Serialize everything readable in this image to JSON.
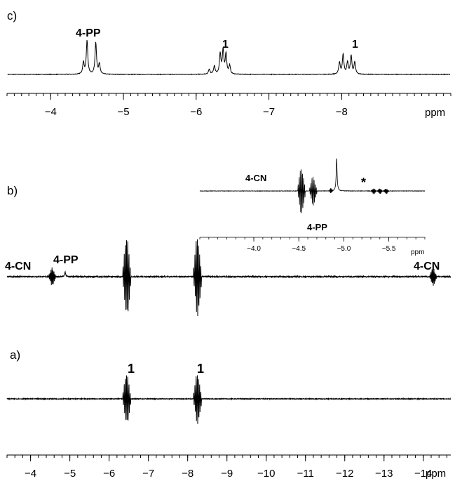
{
  "chart_data": [
    {
      "type": "line",
      "panel": "c)",
      "x_unit": "ppm",
      "xlim": [
        -3.4,
        -9.5
      ],
      "x_ticks": [
        -4,
        -5,
        -6,
        -7,
        -8
      ],
      "x_tick_labels": [
        "−4",
        "−5",
        "−6",
        "−7",
        "−8"
      ],
      "peaks": [
        {
          "label": "4-PP",
          "shifts": [
            -4.45,
            -4.5,
            -4.62,
            -4.67
          ],
          "heights": [
            0.35,
            1.0,
            0.95,
            0.3
          ]
        },
        {
          "label": "1",
          "shifts": [
            -6.18,
            -6.25,
            -6.33,
            -6.37,
            -6.41,
            -6.46
          ],
          "heights": [
            0.15,
            0.25,
            0.6,
            0.7,
            0.6,
            0.25
          ]
        },
        {
          "label": "1",
          "shifts": [
            -7.97,
            -8.02,
            -8.08,
            -8.13,
            -8.18
          ],
          "heights": [
            0.35,
            0.6,
            0.35,
            0.55,
            0.35
          ]
        }
      ]
    },
    {
      "type": "line",
      "panel": "b)",
      "x_unit": "ppm",
      "xlim": [
        -3.4,
        -14.7
      ],
      "peaks": [
        {
          "label": "4-CN",
          "center": -4.55,
          "sign": "antiphase",
          "amplitude": 0.35
        },
        {
          "label": "4-PP",
          "center": -4.88,
          "sign": "positive",
          "amplitude": 0.12
        },
        {
          "label": "",
          "center": -6.45,
          "sign": "antiphase",
          "amplitude": 1.55
        },
        {
          "label": "",
          "center": -8.25,
          "sign": "antiphase",
          "amplitude": 1.55
        },
        {
          "label": "4-CN",
          "center": -14.25,
          "sign": "antiphase",
          "amplitude": 0.35
        }
      ],
      "inset": {
        "x_unit": "ppm",
        "xlim": [
          -3.4,
          -5.9
        ],
        "x_ticks": [
          -4.0,
          -4.5,
          -5.0,
          -5.5
        ],
        "x_tick_labels": [
          "−4.0",
          "−4.5",
          "−5.0",
          "−5.5"
        ],
        "annotations": [
          "4-CN",
          "4-PP",
          "*"
        ]
      }
    },
    {
      "type": "line",
      "panel": "a)",
      "x_unit": "ppm",
      "xlim": [
        -3.4,
        -14.7
      ],
      "x_ticks": [
        -4,
        -5,
        -6,
        -7,
        -8,
        -9,
        -10,
        -11,
        -12,
        -13,
        -14
      ],
      "x_tick_labels": [
        "−4",
        "−5",
        "−6",
        "−7",
        "−8",
        "−9",
        "−10",
        "−11",
        "−12",
        "−13",
        "−14"
      ],
      "peaks": [
        {
          "label": "1",
          "center": -6.45,
          "sign": "antiphase",
          "amplitude": 1.55
        },
        {
          "label": "1",
          "center": -8.25,
          "sign": "antiphase",
          "amplitude": 1.55
        }
      ]
    }
  ],
  "labels": {
    "panel_a": "a)",
    "panel_b": "b)",
    "panel_c": "c)",
    "c_peak_4pp": "4-PP",
    "c_peak_1a": "1",
    "c_peak_1b": "1",
    "b_4cn_left": "4-CN",
    "b_4pp": "4-PP",
    "b_4cn_right": "4-CN",
    "inset_4cn": "4-CN",
    "inset_4pp": "4-PP",
    "inset_star": "*",
    "a_peak_1a": "1",
    "a_peak_1b": "1",
    "ppm_top": "ppm",
    "ppm_bottom": "ppm",
    "ppm_inset": "ppm"
  }
}
